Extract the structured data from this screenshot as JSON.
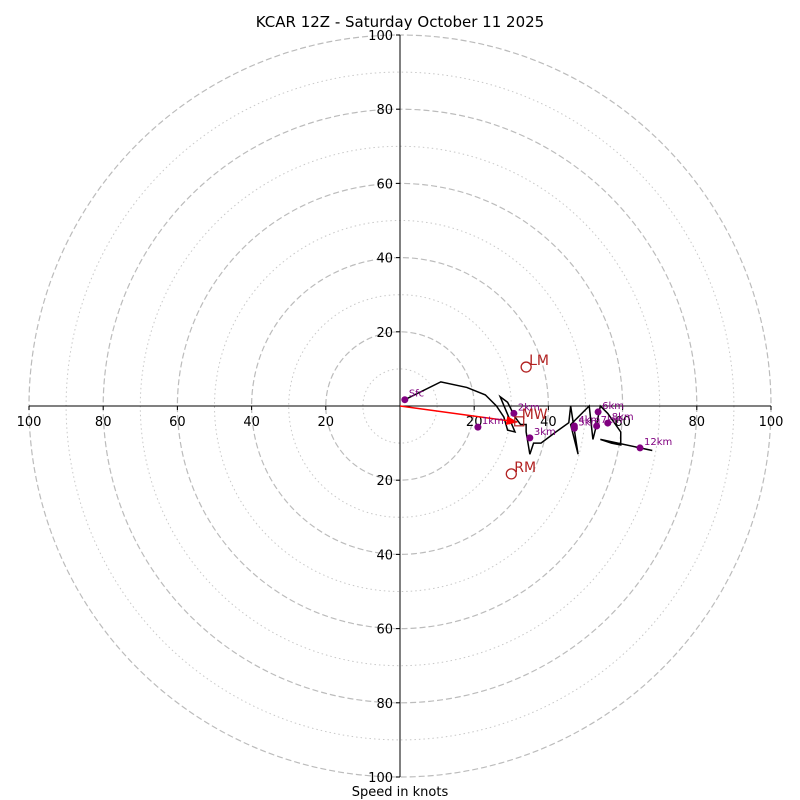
{
  "chart_data": {
    "type": "scatter",
    "subtype": "hodograph",
    "title": "KCAR 12Z - Saturday October 11 2025",
    "xlabel": "Speed in knots",
    "ylabel": "",
    "xlim": [
      -100,
      100
    ],
    "ylim": [
      -100,
      100
    ],
    "rings_major": [
      20,
      40,
      60,
      80,
      100
    ],
    "rings_minor": [
      10,
      30,
      50,
      70,
      90
    ],
    "x_tick_labels": [
      "100",
      "80",
      "60",
      "40",
      "20",
      "20",
      "40",
      "60",
      "80",
      "100"
    ],
    "x_tick_values": [
      -100,
      -80,
      -60,
      -40,
      -20,
      20,
      40,
      60,
      80,
      100
    ],
    "y_tick_labels": [
      "100",
      "80",
      "60",
      "40",
      "20",
      "20",
      "40",
      "60",
      "80",
      "100"
    ],
    "y_tick_values": [
      100,
      80,
      60,
      40,
      20,
      -20,
      -40,
      -60,
      -80,
      -100
    ],
    "grid": true,
    "hodograph_trace": {
      "color": "#000000",
      "u": [
        1.3,
        11,
        18,
        23,
        26,
        28,
        29,
        31,
        27,
        29,
        31,
        32.5,
        34,
        34,
        35,
        36,
        38,
        42,
        45.5,
        46,
        48,
        46,
        51,
        52,
        53,
        54,
        56,
        59.5,
        59.5,
        57,
        54,
        68
      ],
      "v": [
        1.7,
        6.5,
        5,
        3,
        0,
        -3,
        -6.5,
        -7,
        2.5,
        1,
        -3,
        -5,
        -5,
        -7,
        -13,
        -10,
        -10,
        -7,
        -4.5,
        0,
        -13,
        -5,
        0,
        -9,
        -5,
        0,
        -2,
        -7,
        -10.5,
        -10,
        -9,
        -12
      ]
    },
    "height_markers": [
      {
        "label": "Sfc",
        "u": 1.3,
        "v": 1.7
      },
      {
        "label": "1km",
        "u": 21,
        "v": -5.7
      },
      {
        "label": "2km",
        "u": 30.7,
        "v": -2
      },
      {
        "label": "3km",
        "u": 35,
        "v": -8.6
      },
      {
        "label": "4km",
        "u": 47,
        "v": -5.4
      },
      {
        "label": "5km",
        "u": 47,
        "v": -6
      },
      {
        "label": "6km",
        "u": 53.4,
        "v": -1.6
      },
      {
        "label": "7km",
        "u": 53,
        "v": -5.4
      },
      {
        "label": "8km",
        "u": 56,
        "v": -4.6
      },
      {
        "label": "12km",
        "u": 64.7,
        "v": -11.3
      }
    ],
    "marker_color": "#800080",
    "storm_motion": {
      "LM": {
        "label": "LM",
        "u": 34,
        "v": 10.5
      },
      "RM": {
        "label": "RM",
        "u": 30,
        "v": -18.3
      },
      "MW": {
        "label": "MW",
        "u": 32,
        "v": -4
      },
      "color": "#b22222"
    },
    "shear_vector": {
      "from_u": 0,
      "from_v": 0,
      "to_u": 31.5,
      "to_v": -4.3,
      "color": "#ff0000"
    }
  }
}
